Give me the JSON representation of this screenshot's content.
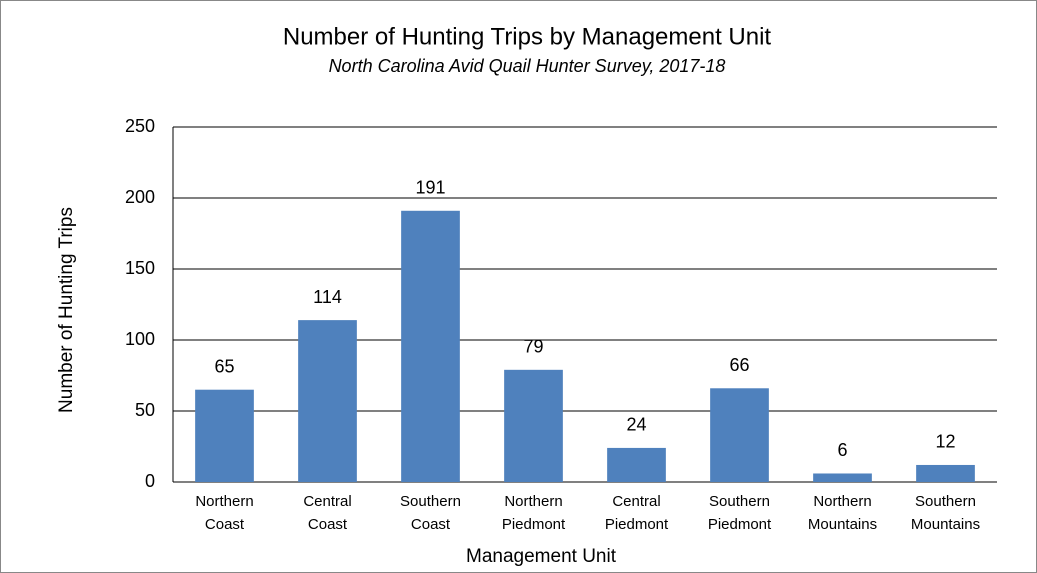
{
  "chart_data": {
    "type": "bar",
    "title": "Number of Hunting Trips by Management Unit",
    "subtitle": "North Carolina Avid Quail Hunter Survey, 2017-18",
    "x_label": "Management Unit",
    "y_label": "Number of Hunting Trips",
    "categories": [
      [
        "Northern",
        "Coast"
      ],
      [
        "Central",
        "Coast"
      ],
      [
        "Southern",
        "Coast"
      ],
      [
        "Northern",
        "Piedmont"
      ],
      [
        "Central",
        "Piedmont"
      ],
      [
        "Southern",
        "Piedmont"
      ],
      [
        "Northern",
        "Mountains"
      ],
      [
        "Southern",
        "Mountains"
      ]
    ],
    "values": [
      65,
      114,
      191,
      79,
      24,
      66,
      6,
      12
    ],
    "color": "#4f81bd",
    "ylim": [
      0,
      250
    ],
    "yticks": [
      0,
      50,
      100,
      150,
      200,
      250
    ],
    "grid": true
  }
}
